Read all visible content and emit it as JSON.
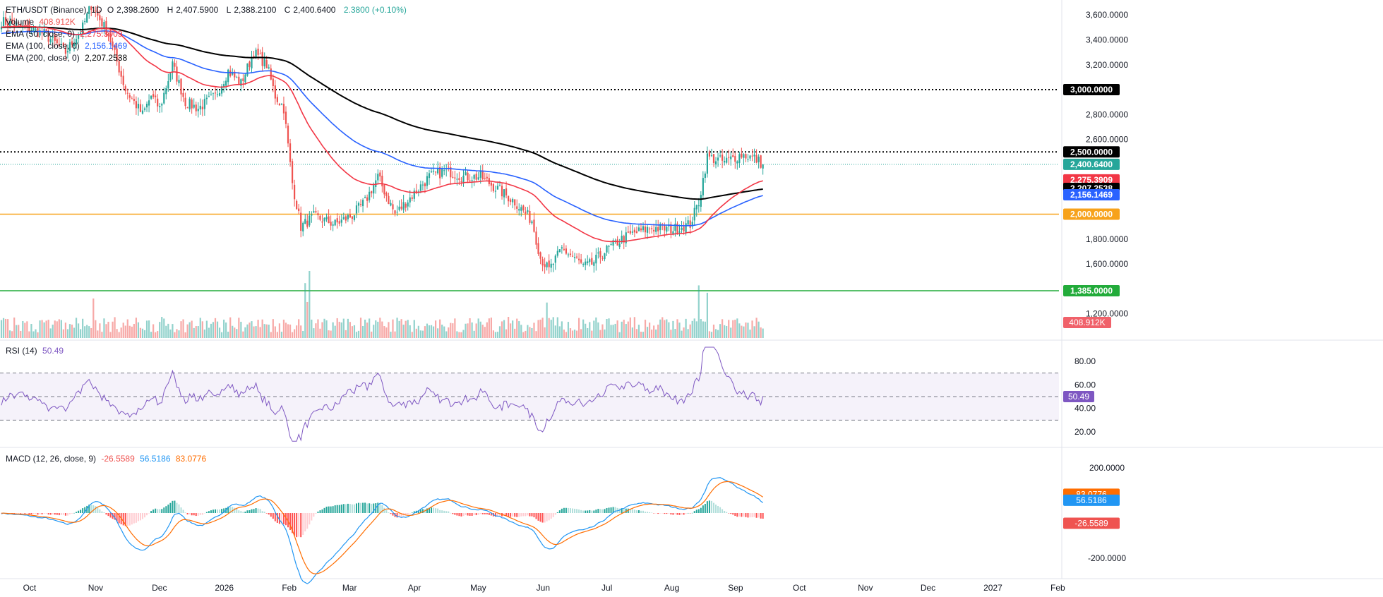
{
  "colors": {
    "up": "#26a69a",
    "down": "#ef5350",
    "ema50": "#f23645",
    "ema100": "#2962ff",
    "ema200": "#000000",
    "level_orange": "#f7a21b",
    "level_green": "#22ab3a",
    "rsi": "#7e57c2",
    "macd": "#2196f3",
    "signal": "#ff6d00"
  },
  "legend": {
    "symbol": "ETH/USDT (Binance), 1D",
    "open_label": "O",
    "open": "2,398.2600",
    "high_label": "H",
    "high": "2,407.5900",
    "low_label": "L",
    "low": "2,388.2100",
    "close_label": "C",
    "close": "2,400.6400",
    "change": "2.3800 (+0.10%)",
    "volume_label": "Volume",
    "volume": "408.912K",
    "ema50_label": "EMA (50, close, 0)",
    "ema50": "2,275.3909",
    "ema100_label": "EMA (100, close, 0)",
    "ema100": "2,156.1469",
    "ema200_label": "EMA (200, close, 0)",
    "ema200": "2,207.2538",
    "rsi_label": "RSI (14)",
    "rsi": "50.49",
    "macd_label": "MACD (12, 26, close, 9)",
    "macd_hist": "-26.5589",
    "macd": "56.5186",
    "macd_signal": "83.0776"
  },
  "chart_data": {
    "type": "candlestick",
    "price_axis_ticks": [
      "3,600.0000",
      "3,400.0000",
      "3,200.0000",
      "2,800.0000",
      "2,600.0000",
      "1,800.0000",
      "1,600.0000",
      "1,200.0000"
    ],
    "price_range": [
      1000,
      3720
    ],
    "rsi_axis_ticks": [
      "80.00",
      "60.00",
      "40.00",
      "20.00"
    ],
    "rsi_range": [
      8,
      98
    ],
    "macd_axis_ticks": [
      "200.0000",
      "-200.0000"
    ],
    "macd_range": [
      -290,
      290
    ],
    "x_axis_ticks": [
      "Oct",
      "Nov",
      "Dec",
      "2026",
      "Feb",
      "Mar",
      "Apr",
      "May",
      "Jun",
      "Jul",
      "Aug",
      "Sep",
      "Oct",
      "Nov",
      "Dec",
      "2027",
      "Feb"
    ],
    "horizontal_levels": [
      {
        "value": 3000,
        "label": "3,000.0000",
        "style": "dotted",
        "color": "#000000"
      },
      {
        "value": 2500,
        "label": "2,500.0000",
        "style": "dotted",
        "color": "#000000"
      },
      {
        "value": 2000,
        "label": "2,000.0000",
        "style": "solid",
        "color": "#f7a21b"
      },
      {
        "value": 1385,
        "label": "1,385.0000",
        "style": "solid",
        "color": "#22ab3a"
      }
    ],
    "badges": [
      {
        "value": 2400.64,
        "label": "2,400.6400",
        "color": "#26a69a"
      },
      {
        "value": 2275.39,
        "label": "2,275.3909",
        "color": "#f23645"
      },
      {
        "value": 2207.25,
        "label": "2,207.2538",
        "color": "#000000"
      },
      {
        "value": 2156.15,
        "label": "2,156.1469",
        "color": "#2962ff"
      }
    ],
    "volume_badge": "408.912K",
    "rsi_badge": "50.49",
    "macd_badges": [
      {
        "value": 83.08,
        "label": "83.0776",
        "color": "#ff6d00"
      },
      {
        "value": 56.52,
        "label": "56.5186",
        "color": "#2196f3"
      },
      {
        "value": -26.56,
        "label": "-26.5589",
        "color": "#ef5350"
      }
    ],
    "close_anchors": [
      [
        0,
        3550
      ],
      [
        20,
        3450
      ],
      [
        30,
        3300
      ],
      [
        38,
        3500
      ],
      [
        42,
        3680
      ],
      [
        50,
        3450
      ],
      [
        58,
        3000
      ],
      [
        66,
        2800
      ],
      [
        70,
        2950
      ],
      [
        74,
        2850
      ],
      [
        80,
        3200
      ],
      [
        86,
        2900
      ],
      [
        92,
        2850
      ],
      [
        100,
        2950
      ],
      [
        106,
        3150
      ],
      [
        112,
        3050
      ],
      [
        118,
        3300
      ],
      [
        124,
        3200
      ],
      [
        128,
        2950
      ],
      [
        132,
        2850
      ],
      [
        136,
        2250
      ],
      [
        140,
        1900
      ],
      [
        146,
        1980
      ],
      [
        156,
        1920
      ],
      [
        164,
        1990
      ],
      [
        170,
        2100
      ],
      [
        176,
        2300
      ],
      [
        184,
        2000
      ],
      [
        192,
        2150
      ],
      [
        200,
        2300
      ],
      [
        208,
        2350
      ],
      [
        216,
        2300
      ],
      [
        224,
        2300
      ],
      [
        232,
        2200
      ],
      [
        240,
        2100
      ],
      [
        248,
        1950
      ],
      [
        252,
        1650
      ],
      [
        256,
        1550
      ],
      [
        262,
        1720
      ],
      [
        268,
        1650
      ],
      [
        272,
        1580
      ],
      [
        276,
        1600
      ],
      [
        282,
        1700
      ],
      [
        290,
        1800
      ],
      [
        296,
        1850
      ],
      [
        304,
        1890
      ],
      [
        314,
        1880
      ],
      [
        322,
        1920
      ],
      [
        326,
        2100
      ],
      [
        330,
        2460
      ],
      [
        338,
        2420
      ],
      [
        346,
        2480
      ],
      [
        352,
        2450
      ],
      [
        356,
        2400.64
      ]
    ]
  }
}
